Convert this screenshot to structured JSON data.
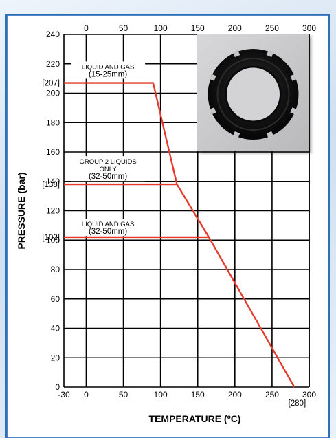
{
  "chart_data": {
    "type": "line",
    "title": "",
    "xlabel": "TEMPERATURE (ºC)",
    "ylabel": "PRESSURE (bar)",
    "xlim": [
      -30,
      300
    ],
    "ylim": [
      0,
      240
    ],
    "grid": true,
    "x_ticks_bottom": [
      "-30",
      "0",
      "50",
      "100",
      "150",
      "200",
      "250",
      "300"
    ],
    "x_ticks_top": [
      "0",
      "50",
      "100",
      "150",
      "200",
      "250",
      "300"
    ],
    "y_ticks": [
      "0",
      "20",
      "40",
      "60",
      "80",
      "100",
      "120",
      "140",
      "160",
      "180",
      "200",
      "220",
      "240"
    ],
    "special_y_labels": [
      {
        "value": 207,
        "text": "[207]"
      },
      {
        "value": 138,
        "text": "[138]"
      },
      {
        "value": 102,
        "text": "[102]"
      }
    ],
    "special_x_labels": [
      {
        "value": 280,
        "text": "[280]"
      }
    ],
    "series": [
      {
        "points": [
          [
            -30,
            207
          ],
          [
            90,
            207
          ],
          [
            122,
            138
          ],
          [
            165,
            102
          ],
          [
            280,
            0
          ]
        ]
      },
      {
        "points": [
          [
            -30,
            138
          ],
          [
            122,
            138
          ]
        ]
      },
      {
        "points": [
          [
            -30,
            102
          ],
          [
            165,
            102
          ]
        ]
      }
    ],
    "annotations": [
      {
        "lines": [
          "LIQUID AND GAS",
          "(15-25mm)"
        ],
        "x": 20,
        "y": 215
      },
      {
        "lines": [
          "GROUP 2 LIQUIDS",
          "ONLY",
          "(32-50mm)"
        ],
        "x": 20,
        "y": 148
      },
      {
        "lines": [
          "LIQUID AND GAS",
          "(32-50mm)"
        ],
        "x": 20,
        "y": 108
      }
    ],
    "line_color": "#e53b2c",
    "grid_color": "#000000"
  },
  "inset_image": {
    "name": "black-lock-ring-photo",
    "bg_color": "#c9c9cb",
    "ring_color": "#141414"
  }
}
